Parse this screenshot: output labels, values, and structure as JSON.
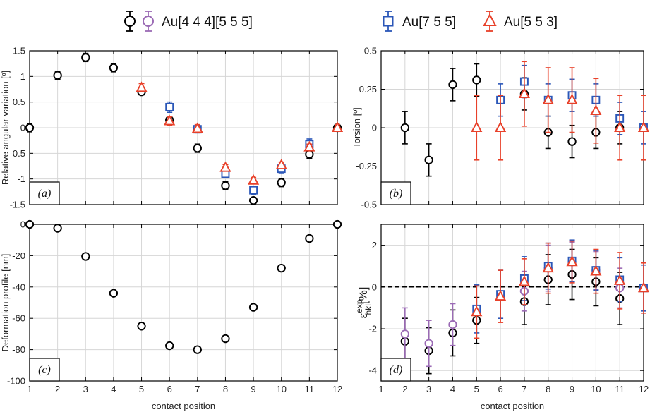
{
  "legend": {
    "items": [
      {
        "label": "Au[4 4 4][5 5 5]",
        "colors": [
          "#000000",
          "#9b6bb5"
        ],
        "marker": "circle"
      },
      {
        "label": "Au[7 5 5]",
        "colors": [
          "#2b57b8"
        ],
        "marker": "square"
      },
      {
        "label": "Au[5 5 3]",
        "colors": [
          "#e8412a"
        ],
        "marker": "triangle"
      }
    ]
  },
  "colors": {
    "black": "#000000",
    "purple": "#9b6bb5",
    "blue": "#2b57b8",
    "red": "#e8412a",
    "grid": "#d6d6d6"
  },
  "chart_data": [
    {
      "panel": "(a)",
      "type": "scatter",
      "ylabel": "Relative angular variation [º]",
      "xlim": [
        1,
        12
      ],
      "ylim": [
        -1.5,
        1.5
      ],
      "xticks": [],
      "yticks": [
        "1.5",
        "1",
        "0.5",
        "0",
        "-0.5",
        "-1",
        "-1.5"
      ],
      "ytick_values": [
        1.5,
        1,
        0.5,
        0,
        -0.5,
        -1,
        -1.5
      ],
      "series": [
        {
          "color": "black",
          "marker": "circle",
          "x": [
            1,
            2,
            3,
            4,
            5,
            6,
            7,
            8,
            9,
            10,
            11,
            12
          ],
          "y": [
            0,
            1.02,
            1.37,
            1.17,
            0.7,
            0.15,
            -0.4,
            -1.13,
            -1.42,
            -1.07,
            -0.52,
            0
          ],
          "err": [
            0.08,
            0.08,
            0.08,
            0.08,
            0.06,
            0.06,
            0.08,
            0.08,
            0.06,
            0.08,
            0.08,
            0.06
          ]
        },
        {
          "color": "blue",
          "marker": "square",
          "x": [
            6,
            7,
            8,
            9,
            10,
            11
          ],
          "y": [
            0.4,
            -0.03,
            -0.9,
            -1.22,
            -0.8,
            -0.32
          ],
          "err": [
            0.1,
            0.07,
            0.08,
            0.08,
            0.08,
            0.1
          ]
        },
        {
          "color": "red",
          "marker": "triangle",
          "x": [
            5,
            6,
            7,
            8,
            9,
            10,
            11,
            12
          ],
          "y": [
            0.78,
            0.13,
            -0.02,
            -0.78,
            -1.03,
            -0.73,
            -0.38,
            0
          ],
          "err": [
            0.08,
            0.08,
            0.08,
            0.06,
            0.06,
            0.06,
            0.06,
            0.06
          ]
        }
      ]
    },
    {
      "panel": "(b)",
      "type": "scatter",
      "ylabel": "Torsion [º]",
      "xlim": [
        1,
        12
      ],
      "ylim": [
        -0.5,
        0.5
      ],
      "xticks": [],
      "yticks": [
        "0.5",
        "0.25",
        "0",
        "-0.25",
        "-0.5"
      ],
      "ytick_values": [
        0.5,
        0.25,
        0,
        -0.25,
        -0.5
      ],
      "series": [
        {
          "color": "black",
          "marker": "circle",
          "x": [
            2,
            3,
            4,
            5,
            7,
            8,
            9,
            10,
            11
          ],
          "y": [
            0,
            -0.21,
            0.28,
            0.31,
            0.22,
            -0.03,
            -0.09,
            -0.03,
            0
          ],
          "err": [
            0.105,
            0.105,
            0.105,
            0.105,
            0.105,
            0.105,
            0.105,
            0.105,
            0.105
          ]
        },
        {
          "color": "blue",
          "marker": "square",
          "x": [
            6,
            7,
            8,
            9,
            10,
            11,
            12
          ],
          "y": [
            0.18,
            0.3,
            0.18,
            0.21,
            0.18,
            0.06,
            0
          ],
          "err": [
            0.105,
            0.105,
            0.105,
            0.105,
            0.105,
            0.105,
            0.105
          ]
        },
        {
          "color": "red",
          "marker": "triangle",
          "x": [
            5,
            6,
            7,
            8,
            9,
            10,
            11,
            12
          ],
          "y": [
            0,
            0,
            0.22,
            0.18,
            0.18,
            0.11,
            0,
            0
          ],
          "err": [
            0.21,
            0.21,
            0.21,
            0.21,
            0.21,
            0.21,
            0.21,
            0.21
          ]
        }
      ]
    },
    {
      "panel": "(c)",
      "type": "scatter",
      "ylabel": "Deformation profile [nm]",
      "xlabel": "contact position",
      "xlim": [
        1,
        12
      ],
      "ylim": [
        -100,
        0
      ],
      "xticks": [
        "1",
        "2",
        "3",
        "4",
        "5",
        "6",
        "7",
        "8",
        "9",
        "10",
        "11",
        "12"
      ],
      "yticks": [
        "0",
        "-20",
        "-40",
        "-60",
        "-80",
        "-100"
      ],
      "ytick_values": [
        0,
        -20,
        -40,
        -60,
        -80,
        -100
      ],
      "series": [
        {
          "color": "black",
          "marker": "circle",
          "x": [
            1,
            2,
            3,
            4,
            5,
            6,
            7,
            8,
            9,
            10,
            11,
            12
          ],
          "y": [
            0,
            -2.5,
            -20.5,
            -44,
            -65,
            -77.5,
            -80,
            -73,
            -53,
            -28,
            -9,
            0
          ]
        }
      ]
    },
    {
      "panel": "(d)",
      "type": "scatter",
      "ylabel": "ε_hkl^exp [%]",
      "xlabel": "contact position",
      "xlim": [
        1,
        12
      ],
      "ylim": [
        -4.5,
        3
      ],
      "xticks": [
        "1",
        "2",
        "3",
        "4",
        "5",
        "6",
        "7",
        "8",
        "9",
        "10",
        "11",
        "12"
      ],
      "yticks": [
        "2",
        "0",
        "-2",
        "-4"
      ],
      "ytick_values": [
        2,
        0,
        -2,
        -4
      ],
      "reference_line": 0,
      "series": [
        {
          "color": "black",
          "marker": "circle",
          "x": [
            2,
            3,
            4,
            5,
            7,
            8,
            9,
            10,
            11
          ],
          "y": [
            -2.6,
            -3.05,
            -2.2,
            -1.6,
            -0.7,
            0.35,
            0.6,
            0.25,
            -0.55
          ],
          "err": [
            1.1,
            1.1,
            1.1,
            1.1,
            1.1,
            1.2,
            1.2,
            1.15,
            1.25
          ]
        },
        {
          "color": "purple",
          "marker": "circle",
          "x": [
            2,
            3,
            4,
            7,
            8,
            9,
            10,
            11
          ],
          "y": [
            -2.25,
            -2.7,
            -1.8,
            -0.2,
            0.9,
            1.2,
            0.8,
            -0.05
          ],
          "err": [
            1.25,
            1.1,
            1.0,
            0.95,
            1.1,
            0.95,
            0.9,
            0.95
          ]
        },
        {
          "color": "blue",
          "marker": "square",
          "x": [
            5,
            6,
            7,
            8,
            9,
            10,
            11,
            12
          ],
          "y": [
            -1.05,
            -0.35,
            0.4,
            1.0,
            1.25,
            0.8,
            0.35,
            -0.05
          ],
          "err": [
            1.15,
            1.15,
            1.05,
            1.1,
            1.0,
            0.95,
            1.05,
            1.1
          ]
        },
        {
          "color": "red",
          "marker": "triangle",
          "x": [
            5,
            6,
            7,
            8,
            9,
            10,
            11,
            12
          ],
          "y": [
            -1.2,
            -0.45,
            0.25,
            0.9,
            1.2,
            0.75,
            0.3,
            -0.05
          ],
          "err": [
            1.25,
            1.25,
            1.1,
            1.2,
            1.0,
            1.05,
            1.35,
            1.2
          ]
        }
      ]
    }
  ]
}
